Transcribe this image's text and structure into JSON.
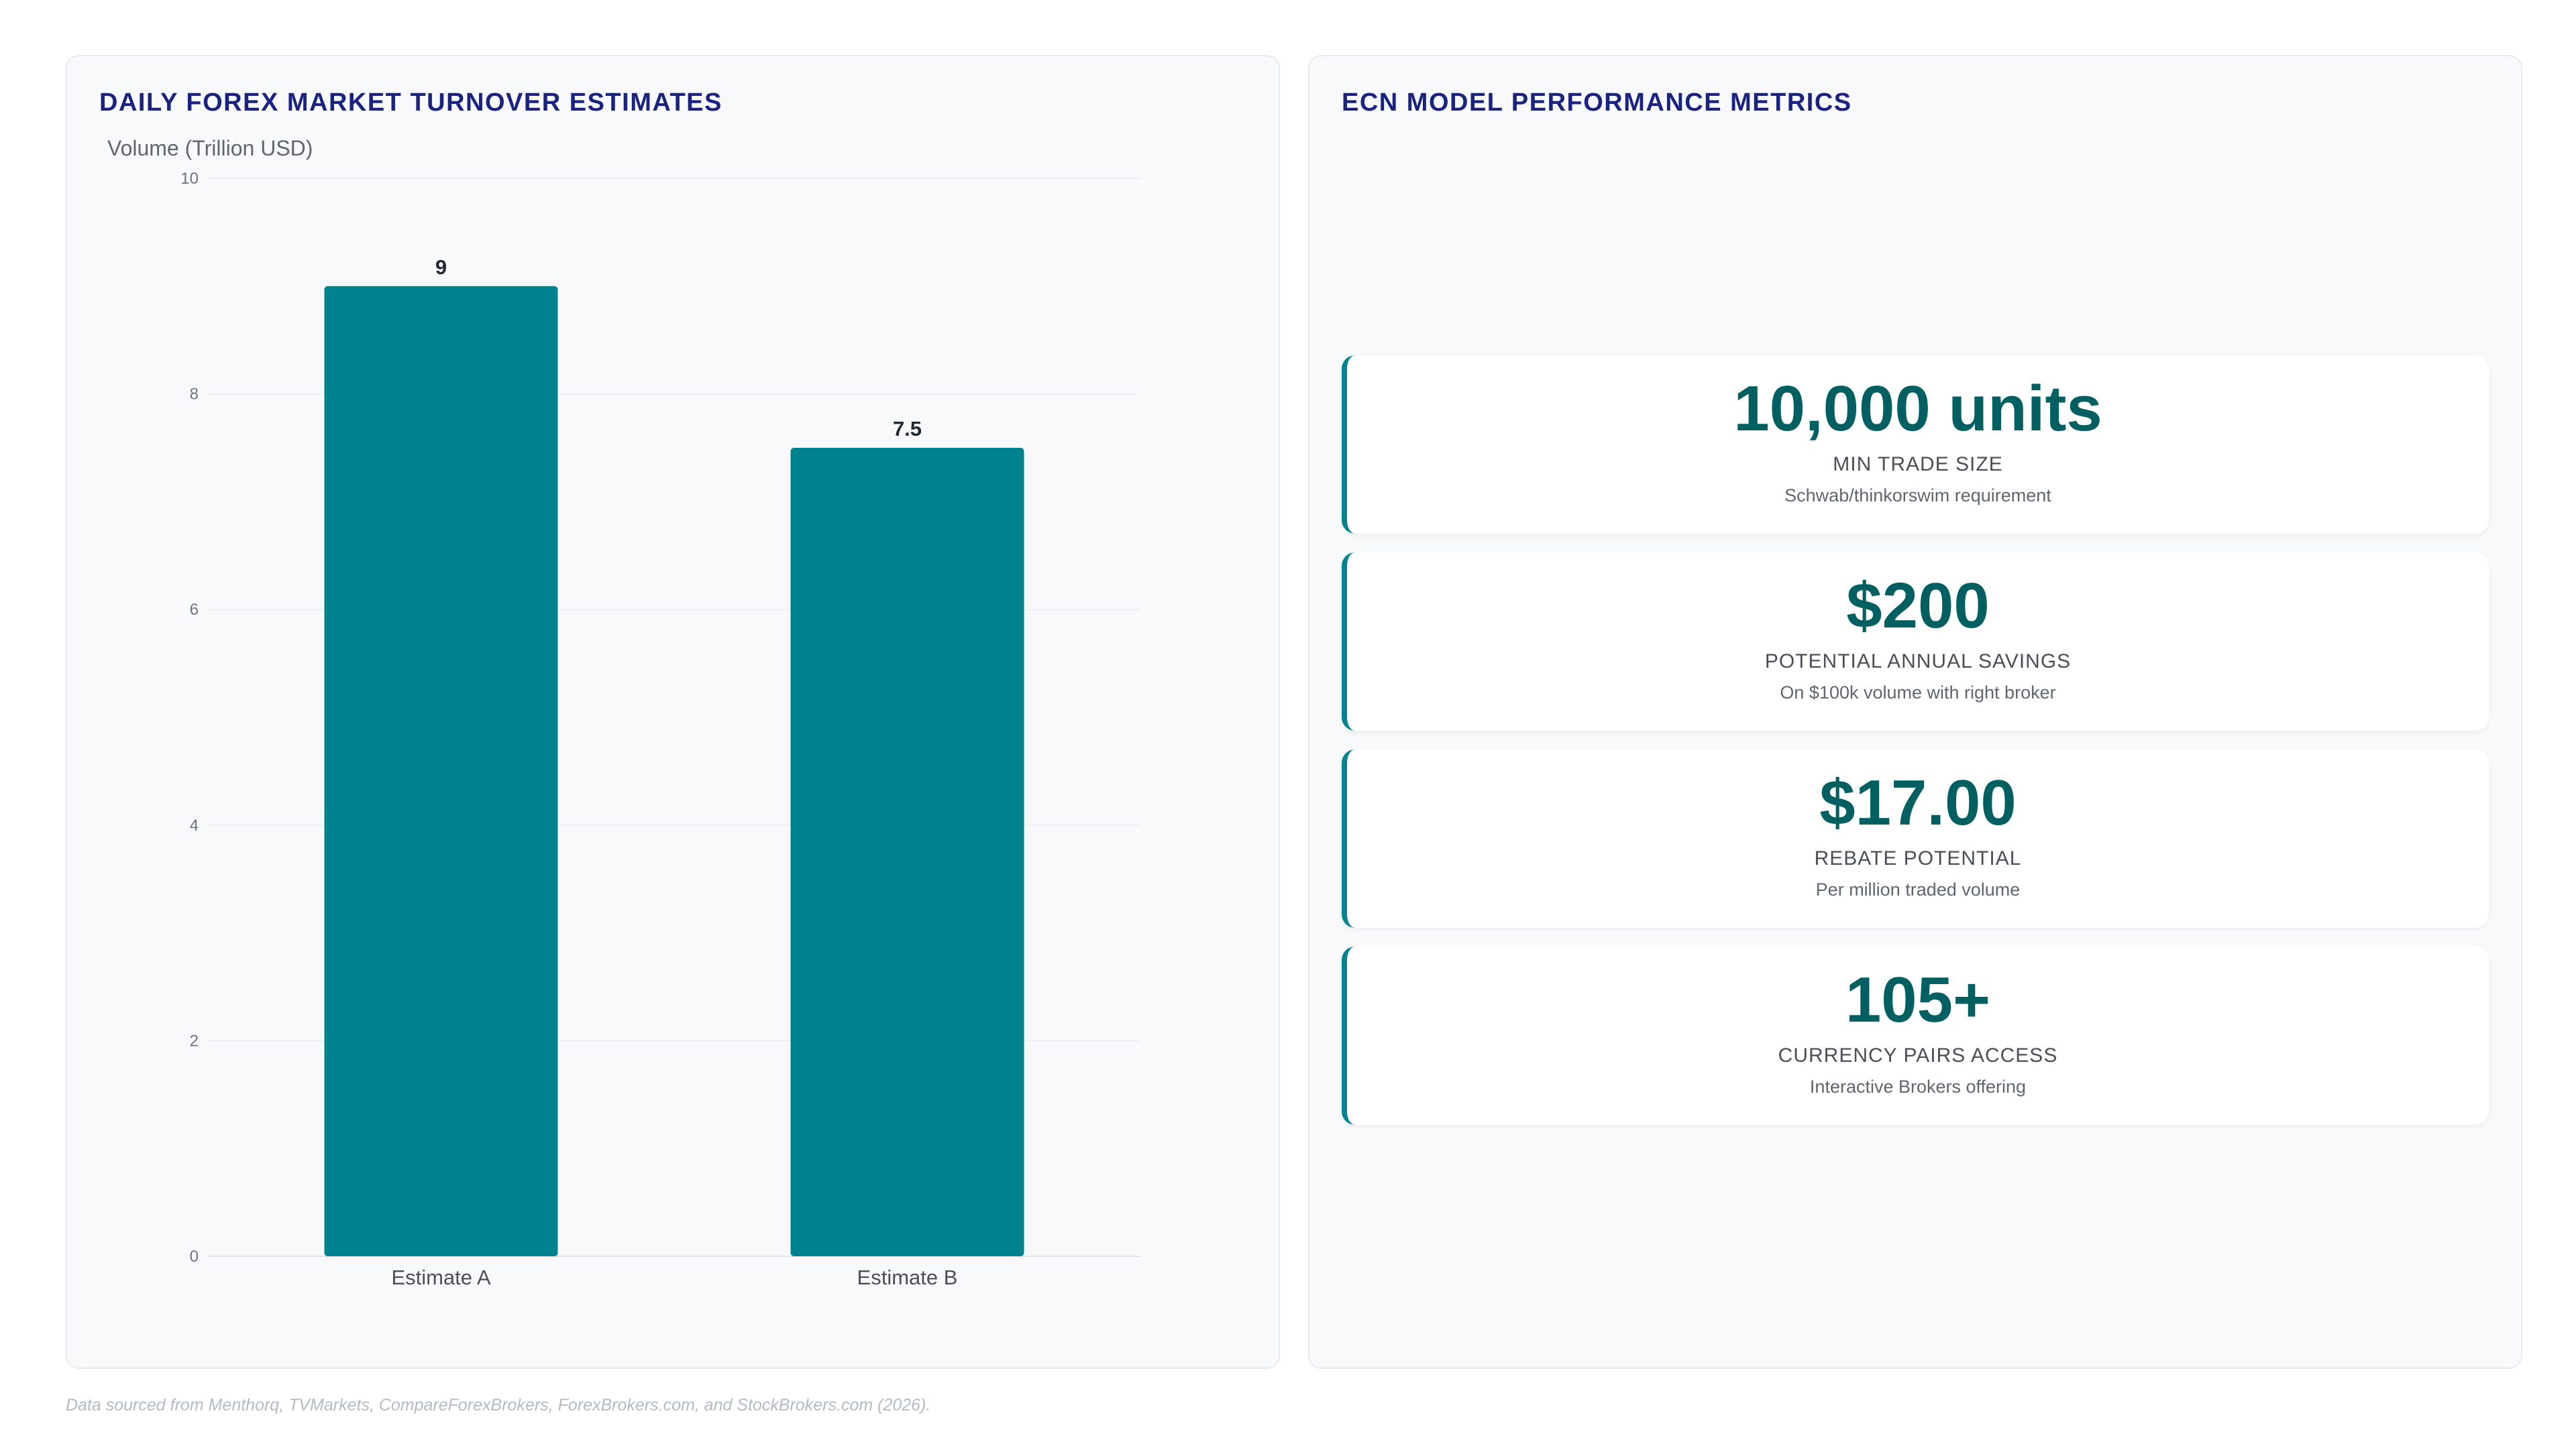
{
  "left_panel": {
    "title": "DAILY FOREX MARKET TURNOVER ESTIMATES"
  },
  "right_panel": {
    "title": "ECN MODEL PERFORMANCE METRICS"
  },
  "chart_data": {
    "type": "bar",
    "title": "DAILY FOREX MARKET TURNOVER ESTIMATES",
    "ylabel": "Volume (Trillion USD)",
    "xlabel": "",
    "categories": [
      "Estimate A",
      "Estimate B"
    ],
    "values": [
      9,
      7.5
    ],
    "data_labels": [
      "9",
      "7.5"
    ],
    "ylim": [
      0,
      10
    ],
    "yticks": [
      0,
      2,
      4,
      6,
      8,
      10
    ],
    "grid": true,
    "legend": "none",
    "bar_color": "#00838f"
  },
  "metrics": [
    {
      "value": "10,000 units",
      "label": "MIN TRADE SIZE",
      "sub": "Schwab/thinkorswim requirement"
    },
    {
      "value": "$200",
      "label": "POTENTIAL ANNUAL SAVINGS",
      "sub": "On $100k volume with right broker"
    },
    {
      "value": "$17.00",
      "label": "REBATE POTENTIAL",
      "sub": "Per million traded volume"
    },
    {
      "value": "105+",
      "label": "CURRENCY PAIRS ACCESS",
      "sub": "Interactive Brokers offering"
    }
  ],
  "footer": "Data sourced from Menthorq, TVMarkets, CompareForexBrokers, ForexBrokers.com, and StockBrokers.com (2026)."
}
